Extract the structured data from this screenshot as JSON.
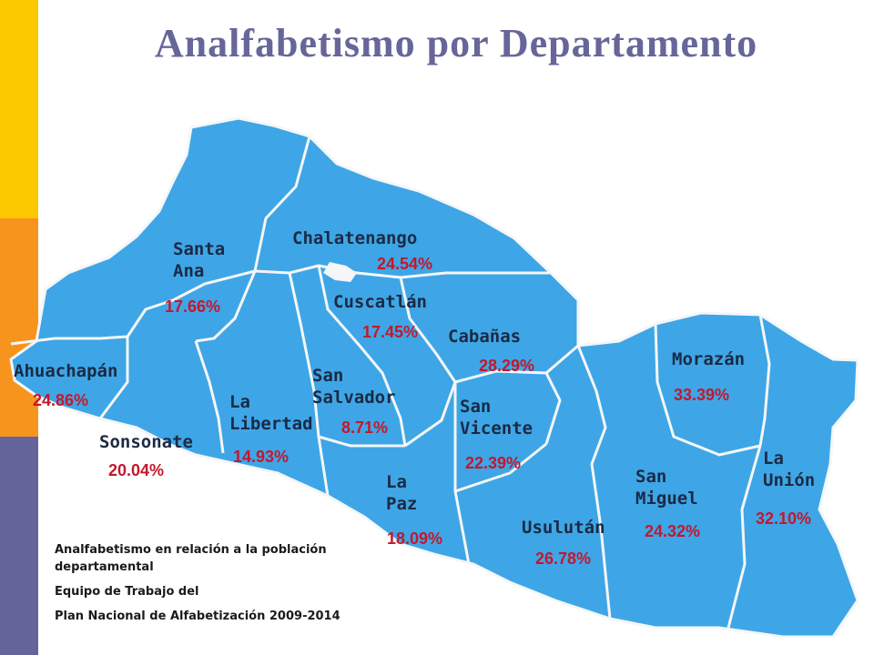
{
  "title": "Analfabetismo por Departamento",
  "colors": {
    "sidebar_yellow": "#fcc800",
    "sidebar_orange": "#f7941d",
    "sidebar_purple": "#64649a",
    "map_fill": "#3ea6e6",
    "border": "#f4f6f8",
    "title": "#66669a",
    "percent": "#c4172c"
  },
  "departments": [
    {
      "name": "Santa\nAna",
      "rate": "17.66%"
    },
    {
      "name": "Chalatenango",
      "rate": "24.54%"
    },
    {
      "name": "Cuscatlán",
      "rate": "17.45%"
    },
    {
      "name": "Cabañas",
      "rate": "28.29%"
    },
    {
      "name": "Morazán",
      "rate": "33.39%"
    },
    {
      "name": "Ahuachapán",
      "rate": "24.86%"
    },
    {
      "name": "Sonsonate",
      "rate": "20.04%"
    },
    {
      "name": "La\nLibertad",
      "rate": "14.93%"
    },
    {
      "name": "San\nSalvador",
      "rate": "8.71%"
    },
    {
      "name": "San\nVicente",
      "rate": "22.39%"
    },
    {
      "name": "La\nPaz",
      "rate": "18.09%"
    },
    {
      "name": "Usulután",
      "rate": "26.78%"
    },
    {
      "name": "San\nMiguel",
      "rate": "24.32%"
    },
    {
      "name": "La\nUnión",
      "rate": "32.10%"
    }
  ],
  "caption": {
    "line1": "Analfabetismo en relación a la población departamental",
    "line2": "Equipo de Trabajo del",
    "line3": "Plan Nacional de Alfabetización 2009-2014"
  }
}
